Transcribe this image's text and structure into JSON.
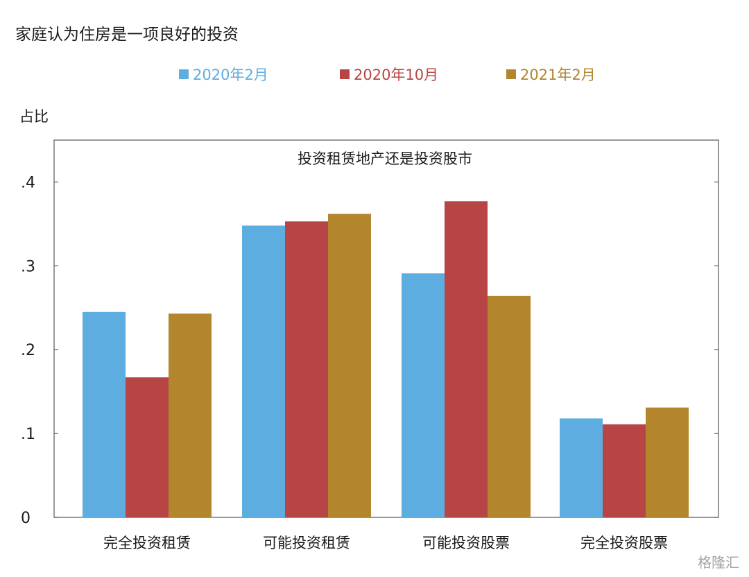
{
  "header": {
    "title": "家庭认为住房是一项良好的投资"
  },
  "chart_data": {
    "type": "bar",
    "title": "投资租赁地产还是投资股市",
    "ylabel": "占比",
    "ylim": [
      0,
      0.45
    ],
    "yticks": [
      {
        "value": 0,
        "label": "0"
      },
      {
        "value": 0.1,
        "label": ".1"
      },
      {
        "value": 0.2,
        "label": ".2"
      },
      {
        "value": 0.3,
        "label": ".3"
      },
      {
        "value": 0.4,
        "label": ".4"
      }
    ],
    "categories": [
      "完全投资租赁",
      "可能投资租赁",
      "可能投资股票",
      "完全投资股票"
    ],
    "series": [
      {
        "name": "2020年2月",
        "color": "#5dade0",
        "values": [
          0.245,
          0.348,
          0.291,
          0.118
        ]
      },
      {
        "name": "2020年10月",
        "color": "#b84545",
        "values": [
          0.167,
          0.353,
          0.377,
          0.111
        ]
      },
      {
        "name": "2021年2月",
        "color": "#b3852d",
        "values": [
          0.243,
          0.362,
          0.264,
          0.131
        ]
      }
    ],
    "legend": "top",
    "grid": false
  },
  "watermark": "格隆汇"
}
